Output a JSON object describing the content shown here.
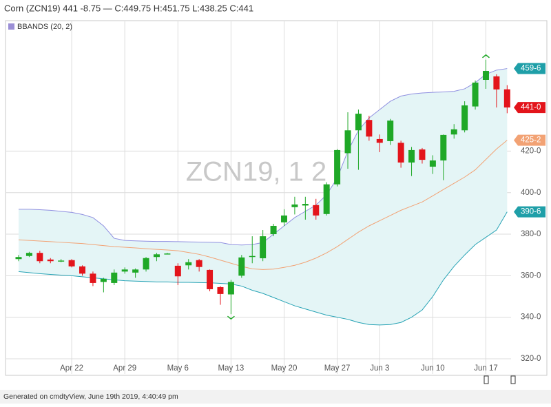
{
  "chart_data": {
    "type": "candlestick",
    "title": "Corn (ZCN19) 441 -8.75 — C:449.75 H:451.75 L:438.25 C:441",
    "watermark": "ZCN19, 1 2",
    "footer": "Generated on cmdtyView, June 19th 2019, 4:40:49 pm",
    "categories": [
      null,
      null,
      null,
      null,
      null,
      "Apr 22",
      null,
      null,
      null,
      null,
      "Apr 29",
      null,
      null,
      null,
      null,
      "May 6",
      null,
      null,
      null,
      null,
      "May 13",
      null,
      null,
      null,
      null,
      "May 20",
      null,
      null,
      null,
      null,
      "May 27",
      null,
      null,
      null,
      "Jun 3",
      null,
      null,
      null,
      null,
      "Jun 10",
      null,
      null,
      null,
      null,
      "Jun 17",
      null,
      null
    ],
    "candles": {
      "up_color": "#1fa827",
      "down_color": "#e3141b",
      "open": [
        368,
        369.5,
        371,
        367.8,
        367,
        367.5,
        364.5,
        361,
        357,
        356.5,
        362,
        361.5,
        363,
        369,
        370.5,
        364.8,
        365,
        367.5,
        362.8,
        354.5,
        351,
        360,
        369,
        368.4,
        380,
        385.7,
        393,
        393.8,
        394,
        389.7,
        404,
        419,
        430,
        435,
        425.8,
        424.8,
        424,
        414.5,
        420.8,
        412.5,
        415.5,
        428,
        430,
        441.5,
        454.3,
        456,
        449.75
      ],
      "high": [
        370,
        371.5,
        372,
        368.5,
        368,
        368,
        365,
        362,
        359,
        363,
        364,
        363.5,
        369,
        371,
        371,
        366,
        368,
        368,
        363,
        355,
        358,
        370,
        379,
        382,
        385,
        392,
        398,
        398,
        397,
        405,
        421,
        438.7,
        440,
        437,
        428,
        435.5,
        425,
        422,
        421.5,
        418,
        428,
        433,
        444,
        454,
        464,
        457,
        451.75
      ],
      "low": [
        367,
        369,
        366,
        366,
        366.5,
        364,
        360,
        355,
        352,
        355.5,
        361,
        359,
        362,
        367,
        370.5,
        355.5,
        363,
        362,
        352.5,
        346,
        341.5,
        359,
        366,
        367,
        379,
        384,
        389.5,
        387,
        387,
        389,
        403,
        411.5,
        411,
        425,
        419.5,
        423,
        412,
        408,
        414,
        409,
        406,
        426,
        429,
        440,
        450,
        441,
        438.25
      ],
      "close": [
        369,
        371,
        367,
        367,
        367.3,
        364.5,
        361,
        356.5,
        358.5,
        361.5,
        363,
        363,
        368.5,
        370.3,
        370.7,
        359.7,
        366.5,
        364.2,
        353.5,
        351.2,
        357,
        368.8,
        369.5,
        379,
        384,
        389,
        394.3,
        394.6,
        389,
        404,
        420.5,
        430,
        438,
        427,
        424,
        434.7,
        414.5,
        420.5,
        415.8,
        415.5,
        427.8,
        430.5,
        442,
        453,
        458.6,
        449.7,
        441
      ]
    },
    "bbands": {
      "name": "BBANDS (20, 2)",
      "legend_color": "#9b8fd6",
      "fill": "#e4f5f6",
      "upper_color": "#8f8fe0",
      "middle_color": "#f2a274",
      "lower_color": "#27a3b5",
      "upper": [
        392,
        392,
        391.8,
        391.5,
        391,
        390.5,
        389.5,
        388,
        384,
        378,
        377,
        376.8,
        376.6,
        376.5,
        376.5,
        376.4,
        376.3,
        376.2,
        376.1,
        376,
        375,
        374.8,
        375,
        376,
        380,
        384,
        388,
        391,
        394,
        399,
        407,
        420,
        430,
        436,
        440,
        444,
        446.5,
        447.5,
        448,
        448.3,
        448.5,
        448.8,
        450,
        453,
        457,
        459,
        459.75
      ],
      "middle": [
        377.3,
        377,
        376.7,
        376.4,
        376.1,
        375.8,
        375.5,
        375,
        374.5,
        374,
        373.7,
        373.4,
        373,
        372.7,
        372.4,
        372,
        371.2,
        370.3,
        369,
        367.5,
        366,
        364.5,
        363.3,
        363,
        363.2,
        364,
        365,
        366.5,
        368.5,
        371,
        374,
        377.5,
        381,
        384,
        386.5,
        389,
        391.5,
        393.5,
        395.5,
        398.5,
        401.5,
        404.5,
        407.5,
        411,
        416,
        421,
        425.25
      ],
      "lower": [
        362,
        361.5,
        361,
        360.6,
        360.3,
        360,
        359.5,
        359,
        358.5,
        358,
        357.6,
        357.4,
        357.2,
        357,
        357,
        356.8,
        356.8,
        356.7,
        356.6,
        356.3,
        356,
        355,
        353,
        351.5,
        349.5,
        347.5,
        345.5,
        344,
        342.5,
        341,
        340,
        339,
        337.5,
        336.5,
        336.3,
        336.5,
        337.5,
        340,
        343.5,
        350,
        358,
        364.5,
        370,
        375,
        378.5,
        382,
        390.75
      ]
    },
    "markers": [
      {
        "value": 459.75,
        "label": "459-6",
        "color": "#1f9fa8"
      },
      {
        "value": 441,
        "label": "441-0",
        "color": "#e3141b"
      },
      {
        "value": 425.25,
        "label": "425-2",
        "color": "#f2a274"
      },
      {
        "value": 390.75,
        "label": "390-6",
        "color": "#1f9fa8"
      }
    ],
    "ylim": [
      312.7,
      479.5
    ],
    "yticks": [
      {
        "value": 320,
        "label": "320-0"
      },
      {
        "value": 340,
        "label": "340-0"
      },
      {
        "value": 360,
        "label": "360-0"
      },
      {
        "value": 380,
        "label": "380-0"
      },
      {
        "value": 400,
        "label": "400-0"
      },
      {
        "value": 420,
        "label": "420-0"
      }
    ],
    "grid": true
  }
}
